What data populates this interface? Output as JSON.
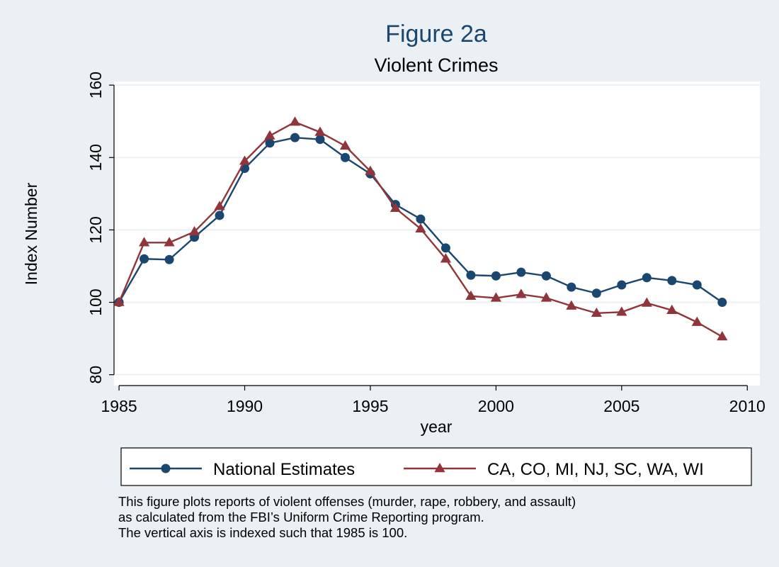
{
  "chart_data": {
    "type": "line",
    "title": "Figure 2a",
    "subtitle": "Violent Crimes",
    "xlabel": "year",
    "ylabel": "Index Number",
    "xlim": [
      1984.8,
      2010.5
    ],
    "ylim": [
      77,
      161
    ],
    "xticks": [
      1985,
      1990,
      1995,
      2000,
      2005,
      2010
    ],
    "yticks": [
      80,
      100,
      120,
      140,
      160
    ],
    "grid": true,
    "legend_position": "bottom",
    "x": [
      1985,
      1986,
      1987,
      1988,
      1989,
      1990,
      1991,
      1992,
      1993,
      1994,
      1995,
      1996,
      1997,
      1998,
      1999,
      2000,
      2001,
      2002,
      2003,
      2004,
      2005,
      2006,
      2007,
      2008,
      2009
    ],
    "series": [
      {
        "name": "National Estimates",
        "color": "#1a476f",
        "marker": "circle",
        "values": [
          100,
          112,
          111.8,
          118,
          124,
          137,
          144,
          145.5,
          145,
          140,
          135.5,
          127,
          123,
          115,
          107.5,
          107.3,
          108.3,
          107.3,
          104.2,
          102.5,
          104.8,
          106.8,
          106,
          104.8,
          100
        ]
      },
      {
        "name": "CA, CO, MI, NJ, SC, WA, WI",
        "color": "#90353b",
        "marker": "triangle",
        "values": [
          100,
          116.5,
          116.5,
          119.5,
          126.5,
          139,
          146,
          149.8,
          147,
          143.2,
          136.2,
          126,
          120.3,
          112,
          101.7,
          101.2,
          102.2,
          101.2,
          99,
          97,
          97.3,
          99.8,
          97.8,
          94.5,
          90.5
        ]
      }
    ]
  },
  "note": {
    "lines": [
      "This figure plots reports of violent offenses (murder, rape, robbery, and assault)",
      "as calculated from the FBI’s Uniform Crime Reporting program.",
      "The vertical axis is indexed such that 1985 is 100."
    ]
  }
}
